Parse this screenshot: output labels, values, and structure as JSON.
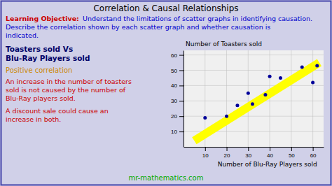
{
  "chart_data": {
    "type": "scatter",
    "title": "Correlation & Causal Relationships",
    "x": [
      10,
      20,
      25,
      30,
      32,
      38,
      40,
      45,
      55,
      60,
      62
    ],
    "values": [
      19,
      20,
      27,
      35,
      28,
      34,
      46,
      45,
      52,
      42,
      53
    ],
    "color": "#000099",
    "xlim": [
      0,
      65
    ],
    "ylim": [
      0,
      63
    ],
    "xticks": [
      10,
      20,
      30,
      40,
      50,
      60
    ],
    "yticks": [
      10,
      20,
      30,
      40,
      50,
      60
    ],
    "xlabel": "Number of Blu-Ray Players sold",
    "ylabel": "Number of Toasters sold",
    "grid": true,
    "band": {
      "x": [
        5,
        63
      ],
      "y": [
        4,
        55
      ],
      "color": "yellow"
    },
    "annotations": [
      {
        "text": "Learning Objective:",
        "color": "#cc0000"
      },
      {
        "text": "Understand the limitations of scatter graphs in identifying causation.",
        "color": "#0000cc"
      },
      {
        "text": "Describe the correlation shown by each scatter graph and whether causation is",
        "color": "#0000cc"
      },
      {
        "text": "indicated.",
        "color": "#0000cc"
      },
      {
        "text": "Toasters sold Vs",
        "color": "#000066"
      },
      {
        "text": "Blu-Ray Players sold",
        "color": "#000066"
      },
      {
        "text": "Positive correlation",
        "color": "#cc8800"
      },
      {
        "text": "An increase in the number of toasters",
        "color": "#cc0000"
      },
      {
        "text": "sold is not caused by the number of",
        "color": "#cc0000"
      },
      {
        "text": "Blu-Ray players sold.",
        "color": "#cc0000"
      },
      {
        "text": "A discount sale could cause an",
        "color": "#cc0000"
      },
      {
        "text": "increase in both.",
        "color": "#cc0000"
      }
    ],
    "footer": {
      "text": "mr-mathematics.com",
      "color": "#00aa00"
    }
  }
}
